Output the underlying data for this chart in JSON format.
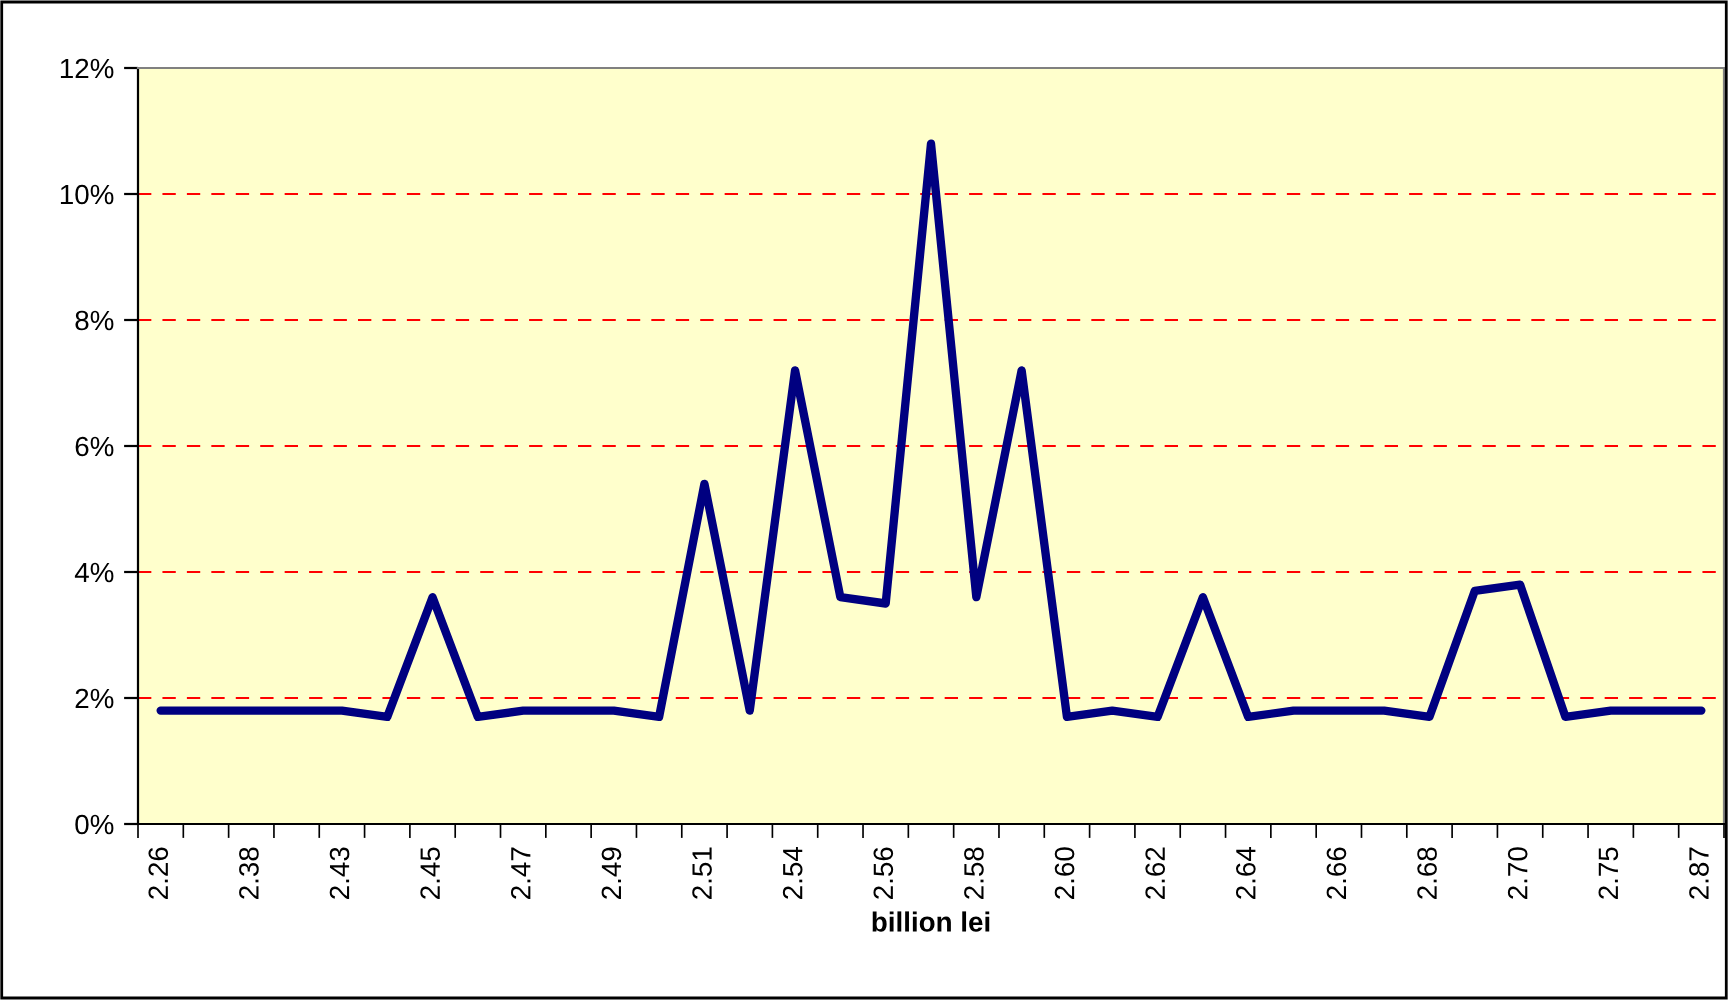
{
  "chart_data": {
    "type": "line",
    "xlabel": "billion lei",
    "categories": [
      "2.26",
      null,
      "2.38",
      null,
      "2.43",
      null,
      "2.45",
      null,
      "2.47",
      null,
      "2.49",
      null,
      "2.51",
      null,
      "2.54",
      null,
      "2.56",
      null,
      "2.58",
      null,
      "2.60",
      null,
      "2.62",
      null,
      "2.64",
      null,
      "2.66",
      null,
      "2.68",
      null,
      "2.70",
      null,
      "2.75",
      null,
      "2.87"
    ],
    "series": [
      {
        "color": "#000080",
        "values": [
          1.8,
          1.8,
          1.8,
          1.8,
          1.8,
          1.7,
          3.6,
          1.7,
          1.8,
          1.8,
          1.8,
          1.7,
          5.4,
          1.8,
          7.2,
          3.6,
          3.5,
          10.8,
          3.6,
          7.2,
          1.7,
          1.8,
          1.7,
          3.6,
          1.7,
          1.8,
          1.8,
          1.8,
          1.7,
          3.7,
          3.8,
          1.7,
          1.8,
          1.8,
          1.8
        ]
      }
    ],
    "ylim": [
      0,
      12
    ],
    "yticks": [
      {
        "value": 0,
        "label": "0%"
      },
      {
        "value": 2,
        "label": "2%"
      },
      {
        "value": 4,
        "label": "4%"
      },
      {
        "value": 6,
        "label": "6%"
      },
      {
        "value": 8,
        "label": "8%"
      },
      {
        "value": 10,
        "label": "10%"
      },
      {
        "value": 12,
        "label": "12%"
      }
    ],
    "grid": "y",
    "marker": "none",
    "line_style": "solid",
    "legend": false
  }
}
